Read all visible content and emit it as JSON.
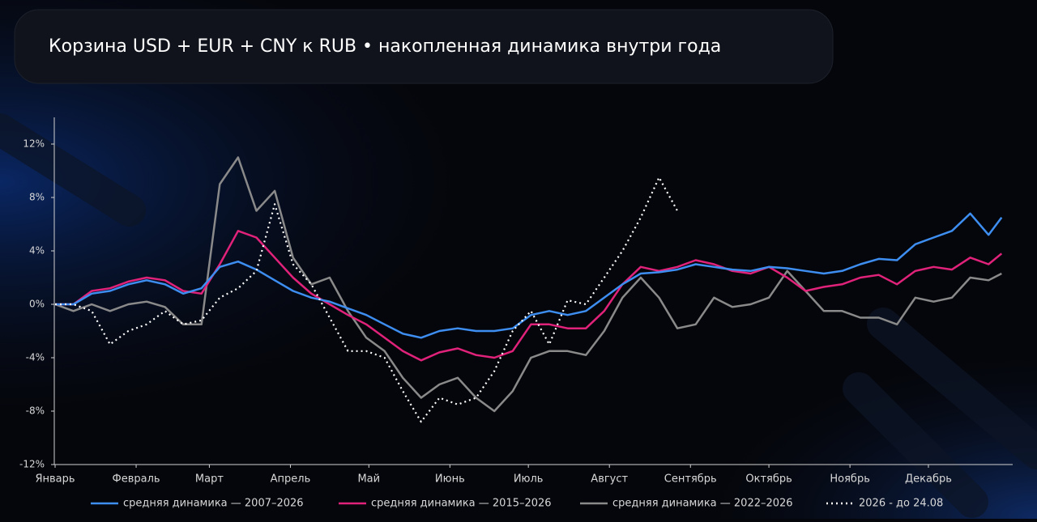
{
  "chart_data": {
    "type": "line",
    "title": "Корзина USD + EUR + CNY к RUB • накопленная динамика внутри года",
    "x": [
      0,
      7,
      14,
      21,
      28,
      35,
      42,
      49,
      56,
      63,
      70,
      77,
      84,
      91,
      98,
      105,
      112,
      119,
      126,
      133,
      140,
      147,
      154,
      161,
      168,
      175,
      182,
      189,
      196,
      203,
      210,
      217,
      224,
      231,
      238,
      245,
      252,
      259,
      266,
      273,
      280,
      287,
      294,
      301,
      308,
      315,
      322,
      329,
      336,
      343,
      350,
      357,
      362
    ],
    "xlim": [
      0,
      365
    ],
    "xticks": [
      {
        "value": 0,
        "label": "Январь"
      },
      {
        "value": 31,
        "label": "Февраль"
      },
      {
        "value": 59,
        "label": "Март"
      },
      {
        "value": 90,
        "label": "Апрель"
      },
      {
        "value": 120,
        "label": "Май"
      },
      {
        "value": 151,
        "label": "Июнь"
      },
      {
        "value": 181,
        "label": "Июль"
      },
      {
        "value": 212,
        "label": "Август"
      },
      {
        "value": 243,
        "label": "Сентябрь"
      },
      {
        "value": 273,
        "label": "Октябрь"
      },
      {
        "value": 304,
        "label": "Ноябрь"
      },
      {
        "value": 334,
        "label": "Декабрь"
      }
    ],
    "ylim": [
      -12,
      14
    ],
    "yticks": [
      {
        "value": -12,
        "label": "-12%"
      },
      {
        "value": -8,
        "label": "-8%"
      },
      {
        "value": -4,
        "label": "-4%"
      },
      {
        "value": 0,
        "label": "0%"
      },
      {
        "value": 4,
        "label": "4%"
      },
      {
        "value": 8,
        "label": "8%"
      },
      {
        "value": 12,
        "label": "12%"
      }
    ],
    "series": [
      {
        "name": "средняя динамика — 2007–2026",
        "color": "#3d8ef0",
        "style": "solid",
        "values": [
          0,
          0,
          0.8,
          1.0,
          1.5,
          1.8,
          1.5,
          0.8,
          1.2,
          2.8,
          3.2,
          2.6,
          1.8,
          1.0,
          0.5,
          0.2,
          -0.3,
          -0.8,
          -1.5,
          -2.2,
          -2.5,
          -2.0,
          -1.8,
          -2.0,
          -2.0,
          -1.8,
          -0.8,
          -0.5,
          -0.8,
          -0.5,
          0.5,
          1.5,
          2.3,
          2.4,
          2.6,
          3.0,
          2.8,
          2.6,
          2.5,
          2.8,
          2.7,
          2.5,
          2.3,
          2.5,
          3.0,
          3.4,
          3.3,
          4.5,
          5.0,
          5.5,
          6.8,
          5.2,
          6.5
        ]
      },
      {
        "name": "средняя динамика — 2015–2026",
        "color": "#e0227a",
        "style": "solid",
        "values": [
          0,
          0,
          1.0,
          1.2,
          1.7,
          2.0,
          1.8,
          1.0,
          0.8,
          3.0,
          5.5,
          5.0,
          3.5,
          2.0,
          0.8,
          0.0,
          -0.8,
          -1.5,
          -2.5,
          -3.5,
          -4.2,
          -3.6,
          -3.3,
          -3.8,
          -4.0,
          -3.5,
          -1.5,
          -1.5,
          -1.8,
          -1.8,
          -0.5,
          1.5,
          2.8,
          2.5,
          2.8,
          3.3,
          3.0,
          2.5,
          2.3,
          2.8,
          2.0,
          1.0,
          1.3,
          1.5,
          2.0,
          2.2,
          1.5,
          2.5,
          2.8,
          2.6,
          3.5,
          3.0,
          3.8
        ]
      },
      {
        "name": "средняя динамика — 2022–2026",
        "color": "#8a8a8a",
        "style": "solid",
        "values": [
          0,
          -0.5,
          0.0,
          -0.5,
          0.0,
          0.2,
          -0.2,
          -1.5,
          -1.5,
          9.0,
          11.0,
          7.0,
          8.5,
          3.5,
          1.5,
          2.0,
          -0.5,
          -2.5,
          -3.5,
          -5.5,
          -7.0,
          -6.0,
          -5.5,
          -7.0,
          -8.0,
          -6.5,
          -4.0,
          -3.5,
          -3.5,
          -3.8,
          -2.0,
          0.5,
          2.0,
          0.5,
          -1.8,
          -1.5,
          0.5,
          -0.2,
          0.0,
          0.5,
          2.5,
          1.0,
          -0.5,
          -0.5,
          -1.0,
          -1.0,
          -1.5,
          0.5,
          0.2,
          0.5,
          2.0,
          1.8,
          2.3
        ]
      },
      {
        "name": "2026 - до 24.08",
        "color": "#ffffff",
        "style": "dotted",
        "values": [
          0,
          0,
          -0.5,
          -3.0,
          -2.0,
          -1.5,
          -0.5,
          -1.5,
          -1.2,
          0.5,
          1.2,
          2.5,
          7.5,
          3.0,
          1.5,
          -1.0,
          -3.5,
          -3.5,
          -4.0,
          -6.5,
          -8.8,
          -7.0,
          -7.5,
          -7.0,
          -5.0,
          -2.0,
          -0.5,
          -3.0,
          0.3,
          0.0,
          2.0,
          4.0,
          6.5,
          9.5,
          7.0,
          null,
          null,
          null,
          null,
          null,
          null,
          null,
          null,
          null,
          null,
          null,
          null,
          null,
          null,
          null,
          null,
          null,
          null
        ]
      }
    ]
  }
}
